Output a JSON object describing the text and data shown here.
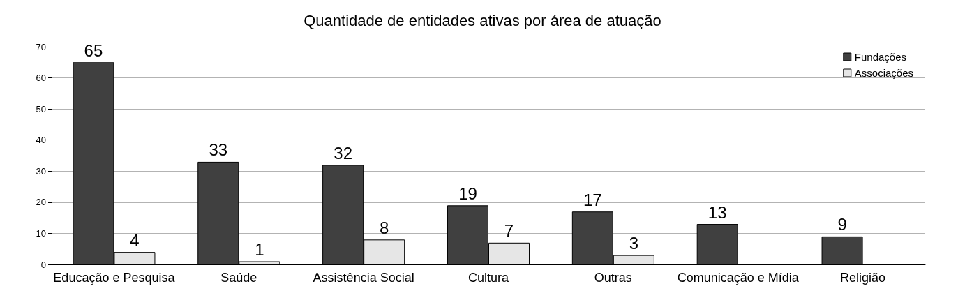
{
  "chart_data": {
    "type": "bar",
    "title": "Quantidade de entidades ativas por área de atuação",
    "categories": [
      "Educação e Pesquisa",
      "Saúde",
      "Assistência Social",
      "Cultura",
      "Outras",
      "Comunicação e Mídia",
      "Religião"
    ],
    "series": [
      {
        "name": "Fundações",
        "color": "#404040",
        "values": [
          65,
          33,
          32,
          19,
          17,
          13,
          9
        ]
      },
      {
        "name": "Associações",
        "color": "#e6e6e6",
        "values": [
          4,
          1,
          8,
          7,
          3,
          null,
          null
        ]
      }
    ],
    "ylim": [
      0,
      70
    ],
    "yticks": [
      0,
      10,
      20,
      30,
      40,
      50,
      60,
      70
    ],
    "grid": "y",
    "legend": "top right",
    "data_labels": true
  }
}
